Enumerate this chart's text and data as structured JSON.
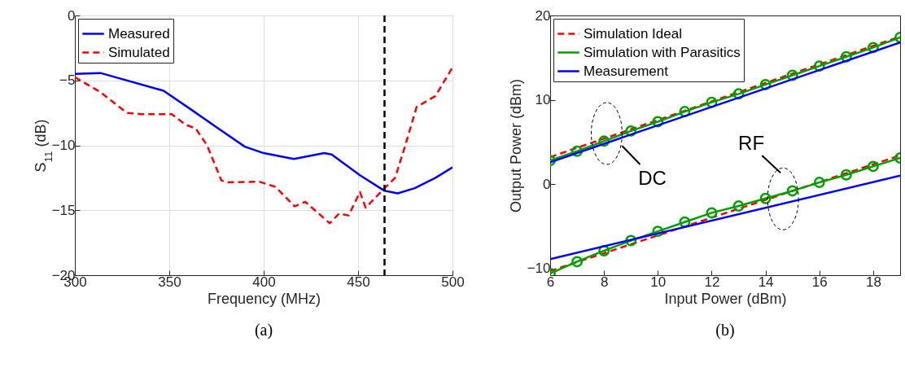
{
  "chart_data": [
    {
      "type": "line",
      "title": "(a)",
      "xlabel": "Frequency (MHz)",
      "ylabel": "S$_{11}$ (dB)",
      "xlim": [
        300,
        500
      ],
      "xticks": [
        300,
        350,
        400,
        450,
        500
      ],
      "ylim": [
        -20,
        0
      ],
      "yticks": [
        -20,
        -15,
        -10,
        -5,
        0
      ],
      "grid": true,
      "legend": "top left",
      "series": [
        {
          "name": "Measured",
          "color": "#0000ff",
          "line_style": "solid",
          "x": [
            300,
            313.5,
            347,
            361.6,
            375,
            390,
            400,
            416,
            432,
            436,
            451,
            464,
            471,
            480,
            491,
            500
          ],
          "values": [
            -4.5,
            -4.43,
            -5.8,
            -7.25,
            -8.6,
            -10.1,
            -10.6,
            -11.05,
            -10.6,
            -10.7,
            -12.3,
            -13.5,
            -13.7,
            -13.3,
            -12.5,
            -11.7
          ]
        },
        {
          "name": "Simulated",
          "color": "#ff0000",
          "line_style": "dashed",
          "x": [
            300,
            313.5,
            327.5,
            335.7,
            351.3,
            358.5,
            364,
            370,
            377.6,
            380.5,
            397.7,
            406.3,
            416.4,
            422,
            435,
            440,
            445,
            451,
            454,
            464,
            469.6,
            474.6,
            481,
            491,
            500
          ],
          "values": [
            -4.75,
            -5.9,
            -7.5,
            -7.6,
            -7.6,
            -8.4,
            -8.7,
            -10,
            -12.7,
            -12.85,
            -12.8,
            -13.2,
            -14.7,
            -14.35,
            -16,
            -15.25,
            -15.4,
            -13.6,
            -14.8,
            -13.3,
            -12.5,
            -10.2,
            -7.05,
            -6.2,
            -4
          ]
        }
      ],
      "ref_lines": [
        {
          "axis": "x",
          "value": 464,
          "color": "#000000",
          "line_style": "dashed"
        }
      ]
    },
    {
      "type": "line",
      "title": "(b)",
      "xlabel": "Input Power (dBm)",
      "ylabel": "Output Power (dBm)",
      "xlim": [
        6,
        19
      ],
      "xticks": [
        6,
        8,
        10,
        12,
        14,
        16,
        18
      ],
      "ylim": [
        -10.8,
        20
      ],
      "yticks": [
        -10,
        0,
        10,
        20
      ],
      "grid": false,
      "legend": "top left",
      "x": [
        6,
        7,
        8,
        9,
        10,
        11,
        12,
        13,
        14,
        15,
        16,
        17,
        18,
        19
      ],
      "series": [
        {
          "name": "Simulation Ideal",
          "color": "#ff0000",
          "line_style": "dashed",
          "x": [
            6,
            19
          ],
          "values": [
            3.2,
            17.5
          ]
        },
        {
          "name": "Simulation with Parasitics",
          "color": "#00a000",
          "line_style": "solid",
          "marker": "circle",
          "values": [
            2.8,
            3.9,
            5.1,
            6.3,
            7.4,
            8.6,
            9.7,
            10.7,
            11.8,
            12.9,
            14,
            15.1,
            16.2,
            17.4
          ]
        },
        {
          "name": "Measurement",
          "color": "#0000ff",
          "line_style": "solid",
          "x": [
            6,
            19
          ],
          "values": [
            2.6,
            16.8
          ]
        },
        {
          "color": "#ff0000",
          "line_style": "dashed",
          "x": [
            6,
            19
          ],
          "values": [
            -10.3,
            3.4
          ]
        },
        {
          "color": "#00a000",
          "line_style": "solid",
          "marker": "circle",
          "values": [
            -10.6,
            -9.2,
            -7.9,
            -6.7,
            -5.6,
            -4.5,
            -3.4,
            -2.6,
            -1.7,
            -0.8,
            0.2,
            1.1,
            2.1,
            3.1
          ]
        },
        {
          "color": "#0000ff",
          "line_style": "solid",
          "x": [
            6,
            19
          ],
          "values": [
            -8.9,
            1
          ]
        }
      ],
      "annotations": [
        {
          "text": "DC",
          "x": 8.1,
          "y": 6
        },
        {
          "text": "RF",
          "x": 14.65,
          "y": -1.75
        }
      ]
    }
  ]
}
